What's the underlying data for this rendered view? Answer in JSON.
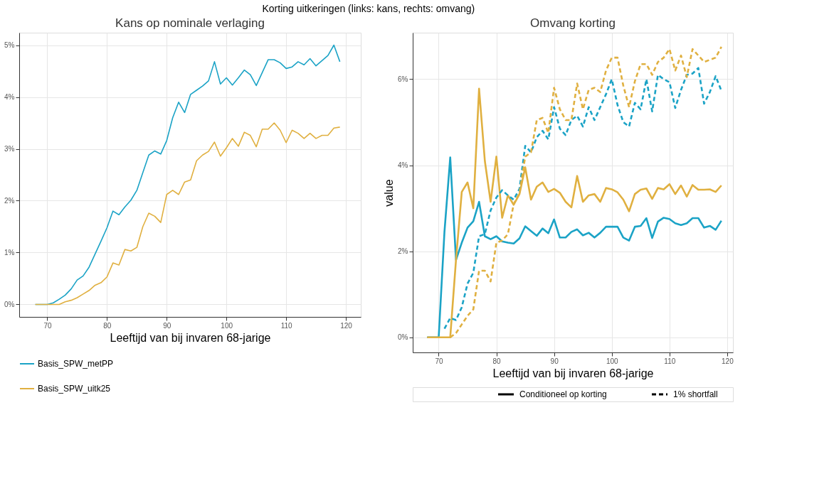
{
  "chart_data": [
    {
      "type": "line",
      "title": "Kans op nominale verlaging",
      "xlabel": "Leeftijd van bij invaren 68-jarige",
      "annotations": [
        "Korting uitkeringen (links: kans, rechts: omvang)"
      ],
      "x": [
        68,
        69,
        70,
        71,
        72,
        73,
        74,
        75,
        76,
        77,
        78,
        79,
        80,
        81,
        82,
        83,
        84,
        85,
        86,
        87,
        88,
        89,
        90,
        91,
        92,
        93,
        94,
        95,
        96,
        97,
        98,
        99,
        100,
        101,
        102,
        103,
        104,
        105,
        106,
        107,
        108,
        109,
        110,
        111,
        112,
        113,
        114,
        115,
        116,
        117,
        118,
        119
      ],
      "xlim": [
        65.3,
        122.5
      ],
      "xticks": [
        70,
        80,
        90,
        100,
        110,
        120
      ],
      "ylim": [
        -0.24,
        5.24
      ],
      "yticks": [
        {
          "value": 0,
          "label": "0%"
        },
        {
          "value": 1,
          "label": "1%"
        },
        {
          "value": 2,
          "label": "2%"
        },
        {
          "value": 3,
          "label": "3%"
        },
        {
          "value": 4,
          "label": "4%"
        },
        {
          "value": 5,
          "label": "5%"
        }
      ],
      "grid": true,
      "legend": "bottom",
      "series": [
        {
          "name": "Basis_SPW_metPP",
          "color": "#1ba3c6",
          "values": [
            0,
            0,
            0,
            0.03,
            0.1,
            0.18,
            0.3,
            0.47,
            0.55,
            0.72,
            0.97,
            1.22,
            1.48,
            1.8,
            1.73,
            1.88,
            2.01,
            2.2,
            2.54,
            2.88,
            2.96,
            2.9,
            3.16,
            3.6,
            3.9,
            3.7,
            4.05,
            4.13,
            4.21,
            4.31,
            4.68,
            4.25,
            4.37,
            4.23,
            4.37,
            4.52,
            4.43,
            4.22,
            4.47,
            4.72,
            4.72,
            4.66,
            4.55,
            4.58,
            4.68,
            4.62,
            4.74,
            4.6,
            4.7,
            4.8,
            5.0,
            4.68
          ]
        },
        {
          "name": "Basis_SPW_uitk25",
          "color": "#e0b040",
          "values": [
            0,
            0,
            0,
            0,
            0,
            0.05,
            0.08,
            0.13,
            0.2,
            0.27,
            0.37,
            0.42,
            0.53,
            0.8,
            0.76,
            1.06,
            1.03,
            1.1,
            1.5,
            1.76,
            1.7,
            1.58,
            2.12,
            2.2,
            2.12,
            2.36,
            2.4,
            2.77,
            2.88,
            2.95,
            3.13,
            2.86,
            3.02,
            3.2,
            3.05,
            3.32,
            3.26,
            3.04,
            3.38,
            3.38,
            3.5,
            3.36,
            3.12,
            3.36,
            3.3,
            3.2,
            3.3,
            3.2,
            3.26,
            3.26,
            3.4,
            3.42
          ]
        }
      ]
    },
    {
      "type": "line",
      "title": "Omvang korting",
      "xlabel": "Leeftijd van bij invaren 68-jarige",
      "ylabel": "value",
      "annotations": [
        "Conditioneel op korting",
        "1% shortfall"
      ],
      "x": [
        68,
        69,
        70,
        71,
        72,
        73,
        74,
        75,
        76,
        77,
        78,
        79,
        80,
        81,
        82,
        83,
        84,
        85,
        86,
        87,
        88,
        89,
        90,
        91,
        92,
        93,
        94,
        95,
        96,
        97,
        98,
        99,
        100,
        101,
        102,
        103,
        104,
        105,
        106,
        107,
        108,
        109,
        110,
        111,
        112,
        113,
        114,
        115,
        116,
        117,
        118,
        119
      ],
      "xlim": [
        65.5,
        121
      ],
      "xticks": [
        70,
        80,
        90,
        100,
        110,
        120
      ],
      "ylim": [
        -0.35,
        7.08
      ],
      "yticks": [
        {
          "value": 0,
          "label": "0%"
        },
        {
          "value": 2,
          "label": "2%"
        },
        {
          "value": 4,
          "label": "4%"
        },
        {
          "value": 6,
          "label": "6%"
        }
      ],
      "grid": true,
      "legend": "bottom",
      "series": [
        {
          "line_style": "solid",
          "color": "#1ba3c6",
          "values": [
            0,
            0,
            0,
            2.45,
            4.18,
            1.8,
            2.2,
            2.55,
            2.7,
            3.15,
            2.35,
            2.28,
            2.35,
            2.23,
            2.2,
            2.18,
            2.3,
            2.58,
            2.47,
            2.36,
            2.53,
            2.42,
            2.74,
            2.32,
            2.32,
            2.45,
            2.51,
            2.37,
            2.43,
            2.32,
            2.43,
            2.57,
            2.57,
            2.57,
            2.32,
            2.25,
            2.57,
            2.59,
            2.77,
            2.31,
            2.69,
            2.78,
            2.75,
            2.65,
            2.61,
            2.65,
            2.77,
            2.77,
            2.55,
            2.59,
            2.5,
            2.71
          ]
        },
        {
          "line_style": "solid",
          "color": "#e0b040",
          "values": [
            0,
            0,
            0,
            0,
            0,
            1.8,
            3.38,
            3.6,
            3.0,
            5.78,
            4.1,
            3.15,
            4.2,
            2.78,
            3.3,
            3.08,
            3.33,
            3.95,
            3.2,
            3.5,
            3.6,
            3.38,
            3.45,
            3.36,
            3.15,
            3.02,
            3.75,
            3.15,
            3.3,
            3.33,
            3.15,
            3.47,
            3.44,
            3.37,
            3.2,
            2.93,
            3.33,
            3.43,
            3.46,
            3.22,
            3.47,
            3.44,
            3.56,
            3.33,
            3.53,
            3.27,
            3.54,
            3.43,
            3.43,
            3.44,
            3.38,
            3.53
          ]
        },
        {
          "line_style": "dashed",
          "color": "#1ba3c6",
          "values": [
            null,
            null,
            null,
            0.2,
            0.45,
            0.4,
            0.7,
            1.25,
            1.5,
            2.35,
            2.4,
            2.95,
            3.25,
            3.42,
            3.3,
            3.2,
            3.45,
            4.45,
            4.3,
            4.65,
            4.8,
            4.6,
            5.35,
            4.85,
            4.7,
            5.05,
            5.15,
            4.9,
            5.35,
            5.05,
            5.35,
            5.65,
            6.0,
            5.4,
            5.0,
            4.9,
            5.45,
            5.3,
            6.0,
            5.25,
            6.1,
            6.0,
            5.93,
            5.33,
            5.75,
            6.1,
            6.13,
            6.26,
            5.43,
            5.7,
            6.07,
            5.73
          ]
        },
        {
          "line_style": "dashed",
          "color": "#e0b040",
          "values": [
            null,
            null,
            null,
            null,
            0,
            0.1,
            0.3,
            0.5,
            0.65,
            1.55,
            1.55,
            1.3,
            2.2,
            2.25,
            2.4,
            3.1,
            3.35,
            4.2,
            4.3,
            5.05,
            5.1,
            4.75,
            5.8,
            5.3,
            5.05,
            5.05,
            5.9,
            5.3,
            5.75,
            5.8,
            5.7,
            6.2,
            6.5,
            6.5,
            5.85,
            5.35,
            5.95,
            6.35,
            6.35,
            6.1,
            6.4,
            6.5,
            6.7,
            6.2,
            6.55,
            6.05,
            6.7,
            6.55,
            6.4,
            6.45,
            6.5,
            6.75
          ]
        }
      ]
    }
  ]
}
